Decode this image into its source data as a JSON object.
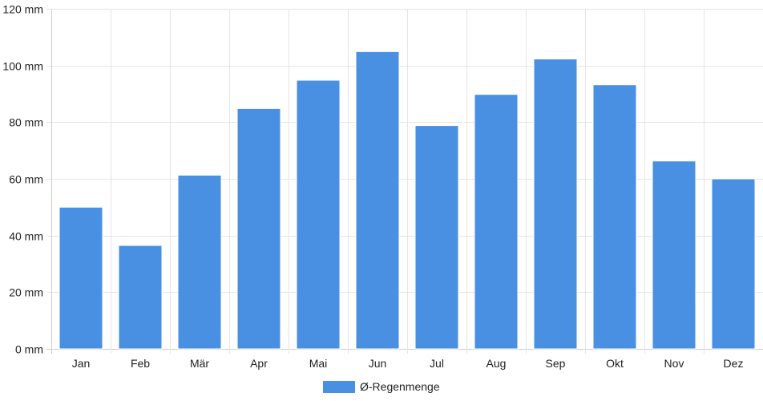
{
  "chart_data": {
    "type": "bar",
    "categories": [
      "Jan",
      "Feb",
      "Mär",
      "Apr",
      "Mai",
      "Jun",
      "Jul",
      "Aug",
      "Sep",
      "Okt",
      "Nov",
      "Dez"
    ],
    "series": [
      {
        "name": "Ø-Regenmenge",
        "values": [
          50,
          36.5,
          61.3,
          84.8,
          94.8,
          104.9,
          78.8,
          89.8,
          102.3,
          93.2,
          66.3,
          60
        ],
        "color": "#4a90e2"
      }
    ],
    "ylim": [
      0,
      120
    ],
    "y_ticks": [
      0,
      20,
      40,
      60,
      80,
      100,
      120
    ],
    "y_unit": "mm",
    "grid": true,
    "legend_position": "bottom-center"
  }
}
